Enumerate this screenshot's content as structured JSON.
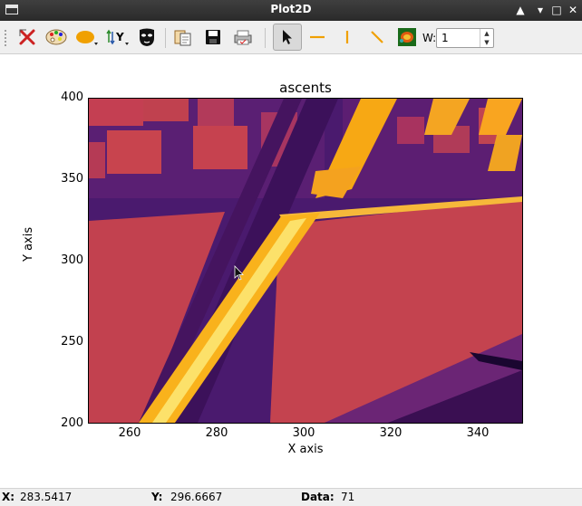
{
  "window": {
    "title": "Plot2D"
  },
  "toolbar": {
    "buttons": [
      {
        "name": "reset-zoom",
        "icon": "red-cross-icon"
      },
      {
        "name": "colormap",
        "icon": "palette-icon"
      },
      {
        "name": "curve-style",
        "icon": "orange-ellipse-icon"
      },
      {
        "name": "y-axis-direction",
        "icon": "y-axis-arrows-icon"
      },
      {
        "name": "keep-aspect-ratio",
        "icon": "mask-icon"
      },
      {
        "name": "copy",
        "icon": "copy-icon"
      },
      {
        "name": "save",
        "icon": "floppy-disk-icon"
      },
      {
        "name": "print",
        "icon": "printer-icon"
      },
      {
        "name": "pointer",
        "icon": "arrow-cursor-icon"
      },
      {
        "name": "horizontal-line",
        "icon": "horizontal-line-icon"
      },
      {
        "name": "vertical-line",
        "icon": "vertical-line-icon"
      },
      {
        "name": "diagonal-line",
        "icon": "diagonal-line-icon"
      },
      {
        "name": "image-profile",
        "icon": "heatmap-thumbnail-icon"
      }
    ],
    "w_label": "W:",
    "w_value": "1"
  },
  "plot": {
    "title": "ascents",
    "xlabel": "X axis",
    "ylabel": "Y axis",
    "xticks": [
      "260",
      "280",
      "300",
      "320",
      "340"
    ],
    "yticks": [
      "400",
      "350",
      "300",
      "250",
      "200"
    ],
    "xlim": [
      250,
      350
    ],
    "ylim": [
      200,
      400
    ],
    "colormap": "inferno"
  },
  "status": {
    "x_label": "X:",
    "x_value": "283.5417",
    "y_label": "Y:",
    "y_value": "296.6667",
    "data_label": "Data:",
    "data_value": "71"
  }
}
